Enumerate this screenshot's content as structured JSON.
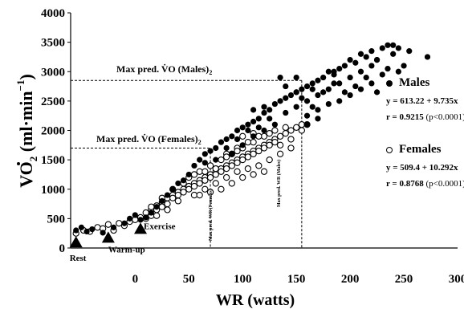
{
  "chart_data": {
    "type": "scatter",
    "ylabel_parts": {
      "v": "V",
      "o": "O",
      "sub": "2",
      "rest": " (ml·min",
      "sup": "−1",
      "close": ")"
    },
    "xlabel": "WR (watts)",
    "ylim": [
      0,
      4000
    ],
    "xlim": [
      -60,
      300
    ],
    "yticks": [
      "0",
      "500",
      "1000",
      "1500",
      "2000",
      "2500",
      "3000",
      "3500",
      "4000"
    ],
    "xticks": [
      "0",
      "50",
      "100",
      "150",
      "200",
      "250",
      "300"
    ],
    "grid": false,
    "annotations": {
      "max_males_label": "Max pred. V̇O  (Males)",
      "max_males_sub": "2",
      "max_males_vo2": 2850,
      "max_females_label": "Max pred. V̇O  (Females)",
      "max_females_sub": "2",
      "max_females_vo2": 1700,
      "max_wr_females_label": "Max pred. WR (Females)",
      "max_wr_females": 70,
      "max_wr_males_label": "Max pred. WR (Males)",
      "max_wr_males": 155
    },
    "phase_markers": [
      {
        "label": "Rest",
        "x": -55,
        "y": 120
      },
      {
        "label": "Warm-up",
        "x": -25,
        "y": 200
      },
      {
        "label": "Exercise",
        "x": 5,
        "y": 350
      }
    ],
    "series": [
      {
        "name": "Males",
        "marker": "filled-circle",
        "regression": "y = 613.22 + 9.735x",
        "r_value": "r = 0.9215",
        "p_value": "(p<0.0001)",
        "points": [
          [
            -55,
            300
          ],
          [
            -50,
            350
          ],
          [
            -45,
            280
          ],
          [
            -40,
            320
          ],
          [
            -30,
            260
          ],
          [
            -20,
            350
          ],
          [
            -10,
            420
          ],
          [
            -5,
            500
          ],
          [
            0,
            560
          ],
          [
            5,
            480
          ],
          [
            10,
            520
          ],
          [
            15,
            600
          ],
          [
            20,
            700
          ],
          [
            25,
            800
          ],
          [
            30,
            900
          ],
          [
            35,
            1000
          ],
          [
            40,
            1100
          ],
          [
            45,
            1150
          ],
          [
            50,
            1250
          ],
          [
            55,
            1400
          ],
          [
            60,
            1500
          ],
          [
            65,
            1600
          ],
          [
            70,
            1650
          ],
          [
            75,
            1700
          ],
          [
            80,
            1800
          ],
          [
            85,
            1850
          ],
          [
            90,
            1900
          ],
          [
            95,
            2000
          ],
          [
            100,
            2050
          ],
          [
            105,
            2100
          ],
          [
            110,
            2150
          ],
          [
            115,
            2200
          ],
          [
            120,
            2300
          ],
          [
            125,
            2350
          ],
          [
            130,
            2450
          ],
          [
            135,
            2500
          ],
          [
            140,
            2550
          ],
          [
            145,
            2600
          ],
          [
            150,
            2650
          ],
          [
            155,
            2700
          ],
          [
            160,
            2750
          ],
          [
            165,
            2800
          ],
          [
            170,
            2850
          ],
          [
            175,
            2900
          ],
          [
            180,
            3000
          ],
          [
            185,
            2950
          ],
          [
            190,
            3050
          ],
          [
            195,
            3100
          ],
          [
            200,
            3200
          ],
          [
            205,
            3150
          ],
          [
            210,
            3300
          ],
          [
            215,
            3250
          ],
          [
            220,
            3350
          ],
          [
            225,
            3200
          ],
          [
            230,
            3400
          ],
          [
            235,
            3450
          ],
          [
            240,
            3300
          ],
          [
            245,
            3400
          ],
          [
            250,
            3100
          ],
          [
            255,
            3350
          ],
          [
            272,
            3250
          ],
          [
            150,
            2400
          ],
          [
            160,
            2500
          ],
          [
            170,
            2600
          ],
          [
            180,
            2700
          ],
          [
            190,
            2800
          ],
          [
            200,
            2900
          ],
          [
            210,
            3000
          ],
          [
            220,
            3100
          ],
          [
            230,
            2950
          ],
          [
            140,
            2300
          ],
          [
            130,
            2100
          ],
          [
            120,
            2000
          ],
          [
            110,
            1900
          ],
          [
            100,
            1750
          ],
          [
            90,
            1600
          ],
          [
            160,
            2250
          ],
          [
            170,
            2350
          ],
          [
            180,
            2450
          ],
          [
            190,
            2500
          ],
          [
            200,
            2600
          ],
          [
            210,
            2700
          ],
          [
            220,
            2800
          ],
          [
            225,
            2650
          ],
          [
            155,
            2550
          ],
          [
            165,
            2700
          ],
          [
            175,
            2650
          ],
          [
            185,
            2800
          ],
          [
            195,
            2650
          ],
          [
            205,
            2750
          ],
          [
            215,
            2900
          ],
          [
            235,
            3050
          ],
          [
            245,
            3000
          ],
          [
            150,
            2900
          ],
          [
            135,
            2900
          ],
          [
            125,
            2200
          ],
          [
            115,
            2050
          ],
          [
            105,
            2000
          ],
          [
            95,
            1850
          ],
          [
            85,
            1700
          ],
          [
            75,
            1500
          ],
          [
            65,
            1450
          ],
          [
            160,
            2100
          ],
          [
            170,
            2200
          ],
          [
            140,
            2750
          ],
          [
            185,
            3000
          ],
          [
            225,
            3200
          ],
          [
            240,
            3450
          ],
          [
            150,
            2650
          ],
          [
            165,
            2400
          ],
          [
            120,
            2400
          ],
          [
            110,
            2350
          ]
        ]
      },
      {
        "name": "Females",
        "marker": "open-circle",
        "regression": "y = 509.4 + 10.292x",
        "r_value": "r = 0.8768",
        "p_value": "(p<0.0001)",
        "points": [
          [
            -55,
            250
          ],
          [
            -48,
            300
          ],
          [
            -42,
            280
          ],
          [
            -35,
            350
          ],
          [
            -25,
            400
          ],
          [
            -15,
            420
          ],
          [
            -5,
            450
          ],
          [
            0,
            480
          ],
          [
            5,
            520
          ],
          [
            10,
            600
          ],
          [
            15,
            650
          ],
          [
            20,
            720
          ],
          [
            25,
            780
          ],
          [
            30,
            850
          ],
          [
            35,
            900
          ],
          [
            40,
            950
          ],
          [
            45,
            1000
          ],
          [
            50,
            1050
          ],
          [
            55,
            1100
          ],
          [
            60,
            1150
          ],
          [
            65,
            1200
          ],
          [
            70,
            1250
          ],
          [
            75,
            1300
          ],
          [
            80,
            1350
          ],
          [
            85,
            1400
          ],
          [
            90,
            1450
          ],
          [
            95,
            1500
          ],
          [
            100,
            1550
          ],
          [
            105,
            1600
          ],
          [
            110,
            1650
          ],
          [
            115,
            1700
          ],
          [
            120,
            1750
          ],
          [
            125,
            1800
          ],
          [
            130,
            1850
          ],
          [
            135,
            1900
          ],
          [
            140,
            1950
          ],
          [
            145,
            2000
          ],
          [
            150,
            2050
          ],
          [
            155,
            2100
          ],
          [
            15,
            550
          ],
          [
            20,
            650
          ],
          [
            25,
            700
          ],
          [
            30,
            750
          ],
          [
            35,
            850
          ],
          [
            40,
            900
          ],
          [
            45,
            950
          ],
          [
            50,
            1000
          ],
          [
            55,
            1050
          ],
          [
            60,
            1100
          ],
          [
            65,
            1150
          ],
          [
            70,
            1200
          ],
          [
            75,
            1250
          ],
          [
            80,
            1300
          ],
          [
            85,
            1350
          ],
          [
            90,
            1400
          ],
          [
            95,
            1450
          ],
          [
            100,
            1500
          ],
          [
            105,
            1550
          ],
          [
            110,
            1600
          ],
          [
            115,
            1650
          ],
          [
            120,
            1700
          ],
          [
            125,
            1750
          ],
          [
            130,
            1800
          ],
          [
            50,
            1200
          ],
          [
            60,
            1300
          ],
          [
            70,
            1400
          ],
          [
            80,
            1500
          ],
          [
            90,
            1600
          ],
          [
            100,
            1700
          ],
          [
            110,
            1800
          ],
          [
            120,
            1900
          ],
          [
            130,
            2000
          ],
          [
            140,
            2050
          ],
          [
            55,
            900
          ],
          [
            65,
            1000
          ],
          [
            75,
            1100
          ],
          [
            85,
            1200
          ],
          [
            95,
            1300
          ],
          [
            105,
            1350
          ],
          [
            115,
            1400
          ],
          [
            125,
            1500
          ],
          [
            135,
            1600
          ],
          [
            145,
            1700
          ],
          [
            40,
            800
          ],
          [
            30,
            650
          ],
          [
            20,
            550
          ],
          [
            10,
            500
          ],
          [
            110,
            1250
          ],
          [
            120,
            1300
          ],
          [
            100,
            1200
          ],
          [
            90,
            1100
          ],
          [
            80,
            1000
          ],
          [
            70,
            950
          ],
          [
            60,
            900
          ],
          [
            -10,
            380
          ],
          [
            -30,
            330
          ],
          [
            -20,
            300
          ],
          [
            45,
            1100
          ],
          [
            75,
            1350
          ],
          [
            85,
            1600
          ],
          [
            95,
            1700
          ],
          [
            105,
            1800
          ],
          [
            115,
            1900
          ],
          [
            125,
            1950
          ],
          [
            135,
            1750
          ],
          [
            145,
            1850
          ],
          [
            155,
            2000
          ],
          [
            160,
            2100
          ],
          [
            100,
            1900
          ],
          [
            110,
            1950
          ],
          [
            85,
            1550
          ],
          [
            95,
            1650
          ],
          [
            65,
            1300
          ],
          [
            55,
            1250
          ],
          [
            35,
            1000
          ],
          [
            25,
            850
          ],
          [
            15,
            700
          ]
        ]
      }
    ]
  }
}
